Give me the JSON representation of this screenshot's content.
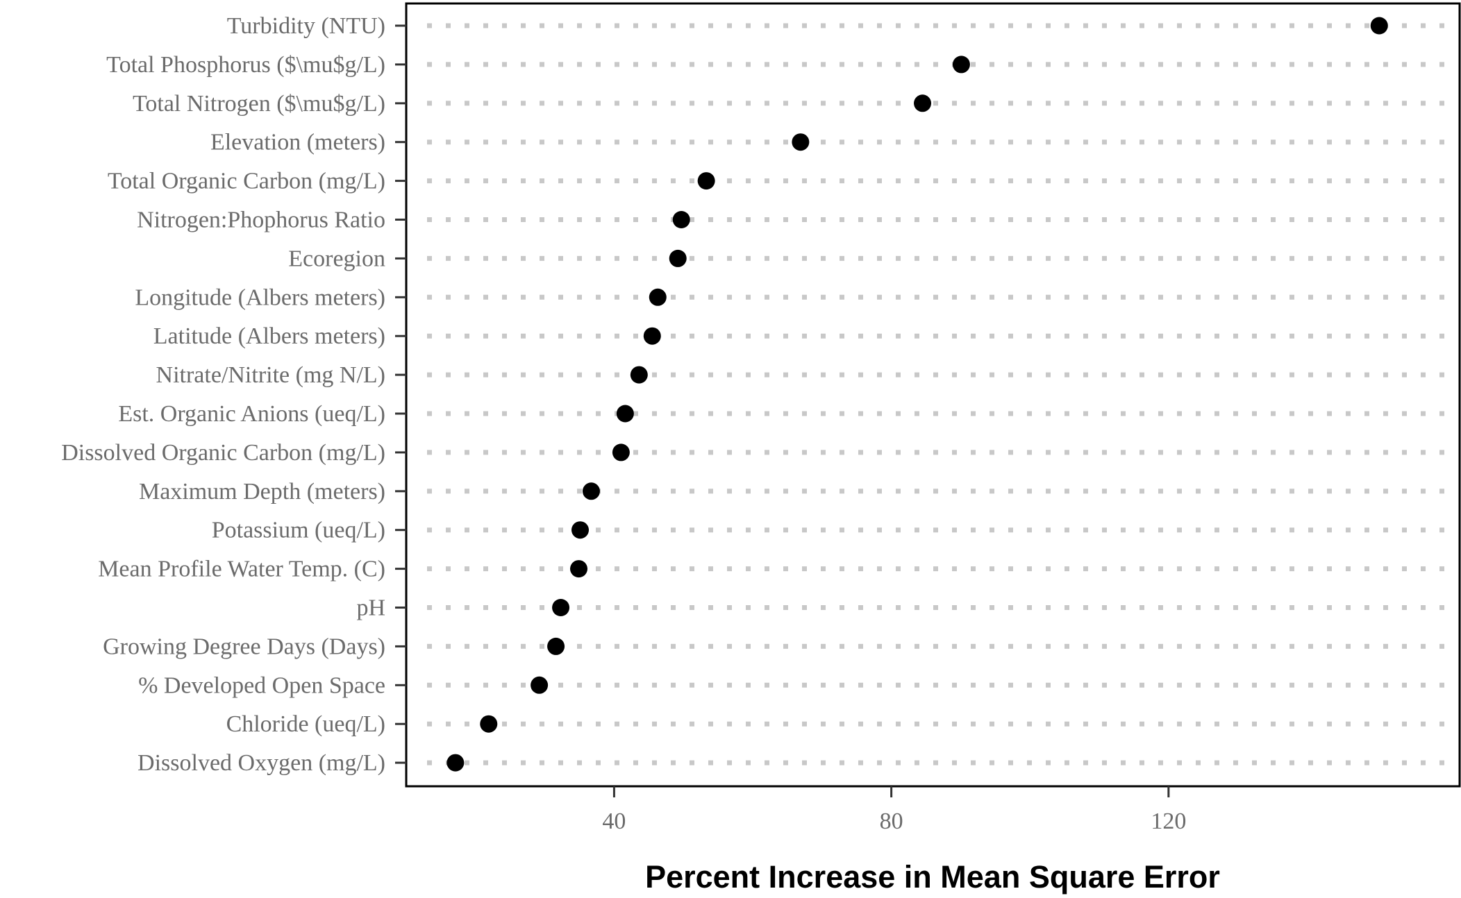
{
  "chart_data": {
    "type": "scatter",
    "title": "",
    "xlabel": "Percent Increase in Mean Square Error",
    "ylabel": "",
    "xlim": [
      10,
      162
    ],
    "xticks": [
      40,
      80,
      120
    ],
    "grid": "dotted horizontal guide per category",
    "legend": "none",
    "colors": {
      "point": "#000000",
      "grid": "#c8c8c8",
      "tick_text": "#6b6b6b",
      "axis": "#000000"
    },
    "categories": [
      "Turbidity (NTU)",
      "Total Phosphorus ($\\mu$g/L)",
      "Total Nitrogen ($\\mu$g/L)",
      "Elevation (meters)",
      "Total Organic Carbon (mg/L)",
      "Nitrogen:Phophorus Ratio",
      "Ecoregion",
      "Longitude (Albers meters)",
      "Latitude  (Albers meters)",
      "Nitrate/Nitrite (mg N/L)",
      "Est. Organic Anions (ueq/L)",
      "Dissolved Organic Carbon (mg/L)",
      "Maximum Depth (meters)",
      "Potassium (ueq/L)",
      "Mean Profile Water Temp. (C)",
      "pH",
      "Growing Degree Days (Days)",
      "% Developed Open Space",
      "Chloride (ueq/L)",
      "Dissolved Oxygen (mg/L)"
    ],
    "values": [
      150.4,
      90.1,
      84.5,
      66.9,
      53.3,
      49.7,
      49.2,
      46.3,
      45.5,
      43.6,
      41.6,
      41.0,
      36.7,
      35.1,
      34.9,
      32.3,
      31.6,
      29.2,
      21.9,
      17.1
    ]
  }
}
